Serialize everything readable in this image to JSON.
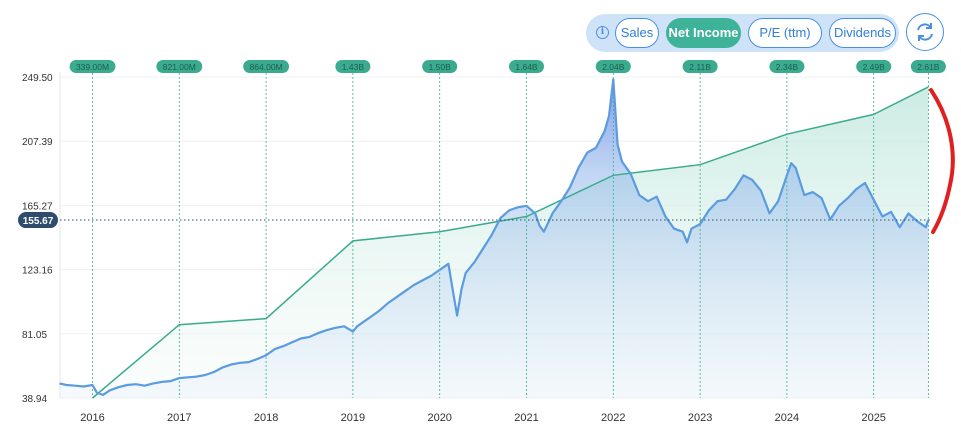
{
  "toolbar": {
    "info_icon": "info-icon",
    "tabs": [
      {
        "label": "Sales",
        "active": false
      },
      {
        "label": "Net Income",
        "active": true
      },
      {
        "label": "P/E (ttm)",
        "active": false
      },
      {
        "label": "Dividends",
        "active": false
      }
    ],
    "refresh_icon": "refresh-icon"
  },
  "chart_data": {
    "type": "line",
    "x_ticks": [
      "2016",
      "2017",
      "2018",
      "2019",
      "2020",
      "2021",
      "2022",
      "2023",
      "2024",
      "2025"
    ],
    "y_ticks": [
      "38.94",
      "81.05",
      "123.16",
      "165.27",
      "207.39",
      "249.50"
    ],
    "ylim": [
      38.94,
      249.5
    ],
    "current_price_label": "155.67",
    "current_price": 155.67,
    "net_income_markers": [
      {
        "label": "339.00M",
        "year": 2016.0
      },
      {
        "label": "821.00M",
        "year": 2017.0
      },
      {
        "label": "864.00M",
        "year": 2018.0
      },
      {
        "label": "1.43B",
        "year": 2019.0
      },
      {
        "label": "1.50B",
        "year": 2020.0
      },
      {
        "label": "1.64B",
        "year": 2021.0
      },
      {
        "label": "2.04B",
        "year": 2022.0
      },
      {
        "label": "2.11B",
        "year": 2023.0
      },
      {
        "label": "2.34B",
        "year": 2024.0
      },
      {
        "label": "2.49B",
        "year": 2025.0
      },
      {
        "label": "2.61B",
        "year": 2025.63
      }
    ],
    "series": [
      {
        "type": "line",
        "values": [
          [
            2016.0,
            38.94
          ],
          [
            2017.0,
            87.0
          ],
          [
            2018.0,
            91.0
          ],
          [
            2019.0,
            142.0
          ],
          [
            2020.0,
            148.0
          ],
          [
            2021.0,
            158.0
          ],
          [
            2022.0,
            185.0
          ],
          [
            2023.0,
            192.0
          ],
          [
            2024.0,
            212.0
          ],
          [
            2025.0,
            225.0
          ],
          [
            2025.63,
            243.0
          ]
        ]
      },
      {
        "type": "area",
        "values": [
          [
            2015.62,
            48.5
          ],
          [
            2015.7,
            47.5
          ],
          [
            2015.8,
            47.0
          ],
          [
            2015.9,
            46.5
          ],
          [
            2016.0,
            47.5
          ],
          [
            2016.05,
            42.5
          ],
          [
            2016.12,
            41.0
          ],
          [
            2016.2,
            44.0
          ],
          [
            2016.3,
            46.0
          ],
          [
            2016.4,
            47.5
          ],
          [
            2016.5,
            48.0
          ],
          [
            2016.6,
            47.0
          ],
          [
            2016.7,
            48.5
          ],
          [
            2016.8,
            49.5
          ],
          [
            2016.9,
            50.0
          ],
          [
            2017.0,
            52.0
          ],
          [
            2017.1,
            52.5
          ],
          [
            2017.2,
            53.0
          ],
          [
            2017.3,
            54.0
          ],
          [
            2017.4,
            56.0
          ],
          [
            2017.5,
            59.0
          ],
          [
            2017.6,
            61.0
          ],
          [
            2017.7,
            62.0
          ],
          [
            2017.8,
            62.5
          ],
          [
            2017.9,
            64.5
          ],
          [
            2018.0,
            67.0
          ],
          [
            2018.1,
            71.0
          ],
          [
            2018.2,
            73.0
          ],
          [
            2018.3,
            75.5
          ],
          [
            2018.4,
            78.0
          ],
          [
            2018.5,
            79.0
          ],
          [
            2018.6,
            81.5
          ],
          [
            2018.7,
            83.5
          ],
          [
            2018.8,
            85.0
          ],
          [
            2018.9,
            86.0
          ],
          [
            2019.0,
            82.5
          ],
          [
            2019.05,
            86.0
          ],
          [
            2019.1,
            88.0
          ],
          [
            2019.2,
            92.0
          ],
          [
            2019.3,
            96.0
          ],
          [
            2019.4,
            101.0
          ],
          [
            2019.5,
            105.0
          ],
          [
            2019.6,
            109.0
          ],
          [
            2019.7,
            113.0
          ],
          [
            2019.8,
            116.0
          ],
          [
            2019.9,
            119.0
          ],
          [
            2020.0,
            123.0
          ],
          [
            2020.1,
            127.0
          ],
          [
            2020.15,
            110.0
          ],
          [
            2020.2,
            93.0
          ],
          [
            2020.25,
            110.0
          ],
          [
            2020.3,
            121.0
          ],
          [
            2020.4,
            128.0
          ],
          [
            2020.5,
            137.0
          ],
          [
            2020.6,
            146.0
          ],
          [
            2020.7,
            157.0
          ],
          [
            2020.8,
            162.0
          ],
          [
            2020.9,
            164.0
          ],
          [
            2021.0,
            165.0
          ],
          [
            2021.1,
            160.0
          ],
          [
            2021.15,
            152.0
          ],
          [
            2021.2,
            148.0
          ],
          [
            2021.3,
            160.0
          ],
          [
            2021.4,
            168.0
          ],
          [
            2021.5,
            177.0
          ],
          [
            2021.6,
            190.0
          ],
          [
            2021.7,
            200.0
          ],
          [
            2021.8,
            203.0
          ],
          [
            2021.9,
            214.0
          ],
          [
            2021.95,
            224.0
          ],
          [
            2022.0,
            248.0
          ],
          [
            2022.05,
            205.0
          ],
          [
            2022.1,
            194.0
          ],
          [
            2022.2,
            186.0
          ],
          [
            2022.3,
            172.0
          ],
          [
            2022.4,
            168.0
          ],
          [
            2022.5,
            171.0
          ],
          [
            2022.6,
            158.0
          ],
          [
            2022.7,
            150.0
          ],
          [
            2022.8,
            148.0
          ],
          [
            2022.85,
            141.0
          ],
          [
            2022.9,
            150.0
          ],
          [
            2023.0,
            153.0
          ],
          [
            2023.1,
            162.0
          ],
          [
            2023.2,
            168.0
          ],
          [
            2023.3,
            169.0
          ],
          [
            2023.4,
            176.0
          ],
          [
            2023.5,
            185.0
          ],
          [
            2023.6,
            182.0
          ],
          [
            2023.7,
            175.0
          ],
          [
            2023.8,
            160.0
          ],
          [
            2023.9,
            168.0
          ],
          [
            2024.0,
            185.0
          ],
          [
            2024.05,
            193.0
          ],
          [
            2024.1,
            190.0
          ],
          [
            2024.2,
            172.0
          ],
          [
            2024.3,
            174.0
          ],
          [
            2024.4,
            170.0
          ],
          [
            2024.5,
            156.0
          ],
          [
            2024.6,
            165.0
          ],
          [
            2024.7,
            170.0
          ],
          [
            2024.8,
            176.0
          ],
          [
            2024.9,
            180.0
          ],
          [
            2025.0,
            169.0
          ],
          [
            2025.1,
            158.0
          ],
          [
            2025.2,
            161.0
          ],
          [
            2025.3,
            151.0
          ],
          [
            2025.4,
            160.0
          ],
          [
            2025.5,
            155.0
          ],
          [
            2025.6,
            151.0
          ],
          [
            2025.63,
            155.67
          ]
        ]
      }
    ],
    "colors": {
      "price_line": "#5b9be0",
      "income_line": "#3aab8e",
      "marker_pill": "#3aab8e",
      "price_badge": "#2e4d6d",
      "annotation": "#e02020"
    },
    "grid": true
  }
}
